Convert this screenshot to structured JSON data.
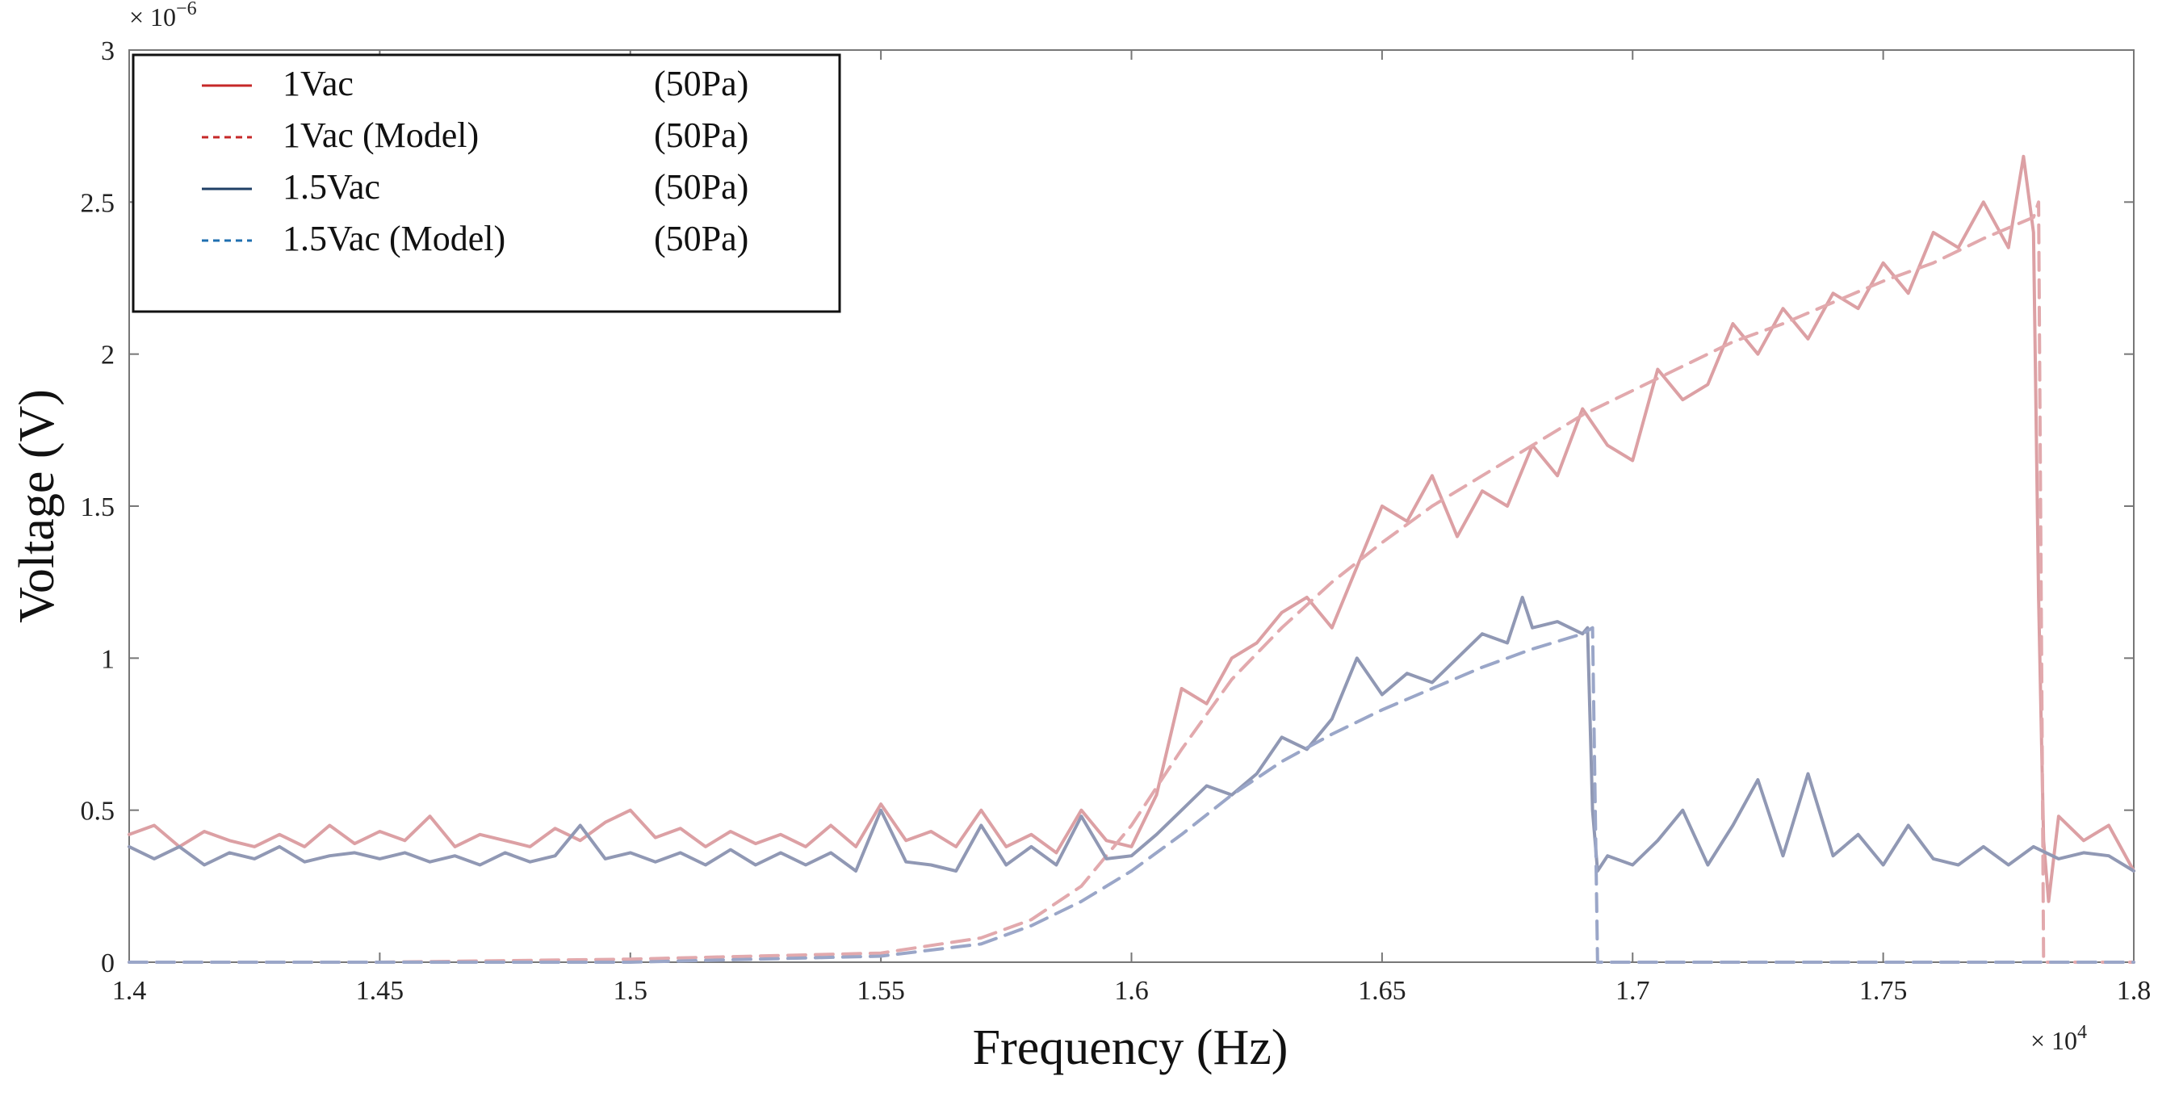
{
  "chart_data": {
    "type": "line",
    "title": "",
    "xlabel": "Frequency (Hz)",
    "ylabel": "Voltage (V)",
    "x_multiplier": "× 10",
    "x_exponent": "4",
    "y_multiplier": "× 10",
    "y_exponent": "−6",
    "xlim": [
      1.4,
      1.8
    ],
    "ylim": [
      0,
      3
    ],
    "x_ticks": [
      1.4,
      1.45,
      1.5,
      1.55,
      1.6,
      1.65,
      1.7,
      1.75,
      1.8
    ],
    "x_tick_labels": [
      "1.4",
      "1.45",
      "1.5",
      "1.55",
      "1.6",
      "1.65",
      "1.7",
      "1.75",
      "1.8"
    ],
    "y_ticks": [
      0,
      0.5,
      1,
      1.5,
      2,
      2.5,
      3
    ],
    "y_tick_labels": [
      "0",
      "0.5",
      "1",
      "1.5",
      "2",
      "2.5",
      "3"
    ],
    "legend": {
      "placement": "top-left",
      "entries": [
        {
          "label": "1Vac",
          "condition": "(50Pa)",
          "style": "solid",
          "color": "#c62828"
        },
        {
          "label": "1Vac (Model)",
          "condition": "(50Pa)",
          "style": "dashed",
          "color": "#c62828"
        },
        {
          "label": "1.5Vac",
          "condition": "(50Pa)",
          "style": "solid",
          "color": "#1f3f66"
        },
        {
          "label": "1.5Vac (Model)",
          "condition": "(50Pa)",
          "style": "dashed",
          "color": "#1f6fb0"
        }
      ]
    },
    "series": [
      {
        "name": "1Vac (50Pa)",
        "style": "solid",
        "color": "#dca0a4",
        "x": [
          1.4,
          1.405,
          1.41,
          1.415,
          1.42,
          1.425,
          1.43,
          1.435,
          1.44,
          1.445,
          1.45,
          1.455,
          1.46,
          1.465,
          1.47,
          1.475,
          1.48,
          1.485,
          1.49,
          1.495,
          1.5,
          1.505,
          1.51,
          1.515,
          1.52,
          1.525,
          1.53,
          1.535,
          1.54,
          1.545,
          1.55,
          1.555,
          1.56,
          1.565,
          1.57,
          1.575,
          1.58,
          1.585,
          1.59,
          1.595,
          1.6,
          1.605,
          1.61,
          1.615,
          1.62,
          1.625,
          1.63,
          1.635,
          1.64,
          1.645,
          1.65,
          1.655,
          1.66,
          1.665,
          1.67,
          1.675,
          1.68,
          1.685,
          1.69,
          1.695,
          1.7,
          1.705,
          1.71,
          1.715,
          1.72,
          1.725,
          1.73,
          1.735,
          1.74,
          1.745,
          1.75,
          1.755,
          1.76,
          1.765,
          1.77,
          1.775,
          1.778,
          1.78,
          1.781,
          1.782,
          1.783,
          1.785,
          1.79,
          1.795,
          1.8
        ],
        "y": [
          0.42,
          0.45,
          0.38,
          0.43,
          0.4,
          0.38,
          0.42,
          0.38,
          0.45,
          0.39,
          0.43,
          0.4,
          0.48,
          0.38,
          0.42,
          0.4,
          0.38,
          0.44,
          0.4,
          0.46,
          0.5,
          0.41,
          0.44,
          0.38,
          0.43,
          0.39,
          0.42,
          0.38,
          0.45,
          0.38,
          0.52,
          0.4,
          0.43,
          0.38,
          0.5,
          0.38,
          0.42,
          0.36,
          0.5,
          0.4,
          0.38,
          0.55,
          0.9,
          0.85,
          1.0,
          1.05,
          1.15,
          1.2,
          1.1,
          1.3,
          1.5,
          1.45,
          1.6,
          1.4,
          1.55,
          1.5,
          1.7,
          1.6,
          1.82,
          1.7,
          1.65,
          1.95,
          1.85,
          1.9,
          2.1,
          2.0,
          2.15,
          2.05,
          2.2,
          2.15,
          2.3,
          2.2,
          2.4,
          2.35,
          2.5,
          2.35,
          2.65,
          2.4,
          1.2,
          0.4,
          0.2,
          0.48,
          0.4,
          0.45,
          0.3
        ]
      },
      {
        "name": "1Vac (Model) (50Pa)",
        "style": "dashed",
        "color": "#e2a9ad",
        "x": [
          1.4,
          1.45,
          1.5,
          1.55,
          1.57,
          1.58,
          1.59,
          1.6,
          1.61,
          1.62,
          1.63,
          1.64,
          1.65,
          1.66,
          1.67,
          1.68,
          1.69,
          1.7,
          1.71,
          1.72,
          1.73,
          1.74,
          1.75,
          1.76,
          1.77,
          1.78,
          1.781,
          1.782,
          1.79,
          1.8
        ],
        "y": [
          0.0,
          0.0,
          0.01,
          0.03,
          0.08,
          0.14,
          0.25,
          0.45,
          0.7,
          0.93,
          1.1,
          1.25,
          1.38,
          1.5,
          1.6,
          1.7,
          1.8,
          1.88,
          1.96,
          2.04,
          2.1,
          2.17,
          2.24,
          2.3,
          2.38,
          2.45,
          2.5,
          0.0,
          0.0,
          0.0
        ]
      },
      {
        "name": "1.5Vac (50Pa)",
        "style": "solid",
        "color": "#9098b4",
        "x": [
          1.4,
          1.405,
          1.41,
          1.415,
          1.42,
          1.425,
          1.43,
          1.435,
          1.44,
          1.445,
          1.45,
          1.455,
          1.46,
          1.465,
          1.47,
          1.475,
          1.48,
          1.485,
          1.49,
          1.495,
          1.5,
          1.505,
          1.51,
          1.515,
          1.52,
          1.525,
          1.53,
          1.535,
          1.54,
          1.545,
          1.55,
          1.555,
          1.56,
          1.565,
          1.57,
          1.575,
          1.58,
          1.585,
          1.59,
          1.595,
          1.6,
          1.605,
          1.61,
          1.615,
          1.62,
          1.625,
          1.63,
          1.635,
          1.64,
          1.645,
          1.65,
          1.655,
          1.66,
          1.665,
          1.67,
          1.675,
          1.678,
          1.68,
          1.685,
          1.69,
          1.691,
          1.692,
          1.693,
          1.695,
          1.7,
          1.705,
          1.71,
          1.715,
          1.72,
          1.725,
          1.73,
          1.735,
          1.74,
          1.745,
          1.75,
          1.755,
          1.76,
          1.765,
          1.77,
          1.775,
          1.78,
          1.785,
          1.79,
          1.795,
          1.8
        ],
        "y": [
          0.38,
          0.34,
          0.38,
          0.32,
          0.36,
          0.34,
          0.38,
          0.33,
          0.35,
          0.36,
          0.34,
          0.36,
          0.33,
          0.35,
          0.32,
          0.36,
          0.33,
          0.35,
          0.45,
          0.34,
          0.36,
          0.33,
          0.36,
          0.32,
          0.37,
          0.32,
          0.36,
          0.32,
          0.36,
          0.3,
          0.5,
          0.33,
          0.32,
          0.3,
          0.45,
          0.32,
          0.38,
          0.32,
          0.48,
          0.34,
          0.35,
          0.42,
          0.5,
          0.58,
          0.55,
          0.62,
          0.74,
          0.7,
          0.8,
          1.0,
          0.88,
          0.95,
          0.92,
          1.0,
          1.08,
          1.05,
          1.2,
          1.1,
          1.12,
          1.08,
          1.1,
          0.5,
          0.3,
          0.35,
          0.32,
          0.4,
          0.5,
          0.32,
          0.45,
          0.6,
          0.35,
          0.62,
          0.35,
          0.42,
          0.32,
          0.45,
          0.34,
          0.32,
          0.38,
          0.32,
          0.38,
          0.34,
          0.36,
          0.35,
          0.3
        ]
      },
      {
        "name": "1.5Vac (Model) (50Pa)",
        "style": "dashed",
        "color": "#9aa6c8",
        "x": [
          1.4,
          1.45,
          1.5,
          1.55,
          1.57,
          1.58,
          1.59,
          1.6,
          1.61,
          1.62,
          1.63,
          1.64,
          1.65,
          1.66,
          1.67,
          1.68,
          1.69,
          1.692,
          1.693,
          1.7,
          1.75,
          1.8
        ],
        "y": [
          0.0,
          0.0,
          0.0,
          0.02,
          0.06,
          0.12,
          0.2,
          0.3,
          0.42,
          0.55,
          0.66,
          0.75,
          0.83,
          0.9,
          0.97,
          1.03,
          1.08,
          1.1,
          0.0,
          0.0,
          0.0,
          0.0
        ]
      }
    ]
  }
}
